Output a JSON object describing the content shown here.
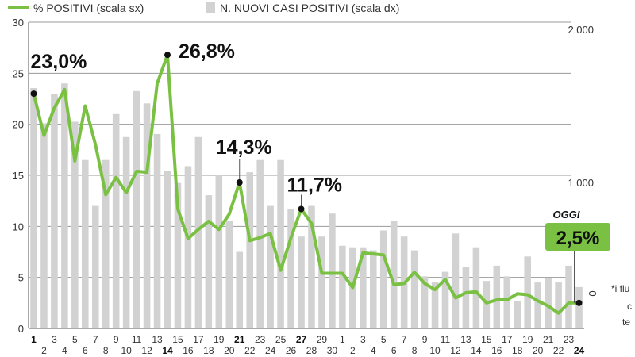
{
  "chart_data": {
    "type": "bar",
    "legend": [
      {
        "name": "% POSITIVI (scala sx)",
        "color": "#7ac143",
        "kind": "line"
      },
      {
        "name": "N. NUOVI CASI POSITIVI (scala dx)",
        "color": "#d2d2d2",
        "kind": "bar"
      }
    ],
    "legend_position": "top-left",
    "grid": true,
    "y_left": {
      "min": 0,
      "max": 30,
      "ticks": [
        "0",
        "5",
        "10",
        "15",
        "20",
        "25",
        "30"
      ]
    },
    "y_right": {
      "min": 0,
      "max": 2000,
      "ticks": [
        {
          "value": 0,
          "label": "0"
        },
        {
          "value": 1000,
          "label": "1.000"
        },
        {
          "value": 2000,
          "label": "2.000"
        }
      ]
    },
    "x_labels": [
      "1",
      "2",
      "3",
      "4",
      "5",
      "6",
      "7",
      "8",
      "9",
      "10",
      "11",
      "12",
      "13",
      "14",
      "15",
      "16",
      "17",
      "18",
      "19",
      "20",
      "21",
      "22",
      "23",
      "24",
      "25",
      "26",
      "27",
      "28",
      "29",
      "30",
      "1",
      "2",
      "3",
      "4",
      "5",
      "6",
      "7",
      "8",
      "9",
      "10",
      "11",
      "12",
      "13",
      "14",
      "15",
      "16",
      "17",
      "18",
      "19",
      "20",
      "21",
      "22",
      "23",
      "24"
    ],
    "bold_labels": [
      0,
      13,
      20,
      26,
      53
    ],
    "series": [
      {
        "name": "N. NUOVI CASI POSITIVI (scala dx)",
        "axis": "right",
        "type": "bar",
        "values": [
          1570,
          1340,
          1530,
          1600,
          1350,
          1100,
          800,
          1100,
          1400,
          1250,
          1550,
          1470,
          1270,
          1030,
          950,
          1060,
          1250,
          870,
          1000,
          700,
          500,
          1020,
          1100,
          800,
          1100,
          780,
          600,
          800,
          600,
          750,
          540,
          530,
          530,
          510,
          640,
          700,
          600,
          510,
          340,
          300,
          370,
          620,
          400,
          530,
          310,
          410,
          340,
          180,
          470,
          300,
          330,
          300,
          410,
          270
        ]
      },
      {
        "name": "% POSITIVI (scala sx)",
        "axis": "left",
        "type": "line",
        "values": [
          23.0,
          18.9,
          21.6,
          23.4,
          16.4,
          21.8,
          18.0,
          13.1,
          14.8,
          13.3,
          15.4,
          15.3,
          24.0,
          26.8,
          11.7,
          8.8,
          9.7,
          10.5,
          9.7,
          11.2,
          14.3,
          8.6,
          8.9,
          9.3,
          5.7,
          8.9,
          11.7,
          10.3,
          5.4,
          5.4,
          5.4,
          4.0,
          7.4,
          7.3,
          7.2,
          4.3,
          4.4,
          5.5,
          4.4,
          3.8,
          4.8,
          3.0,
          3.5,
          3.6,
          2.5,
          2.8,
          2.8,
          3.4,
          3.3,
          2.7,
          2.2,
          1.5,
          2.5,
          2.5
        ]
      }
    ],
    "annotations": [
      {
        "index": 0,
        "value": 23.0,
        "label": "23,0%"
      },
      {
        "index": 13,
        "value": 26.8,
        "label": "26,8%"
      },
      {
        "index": 20,
        "value": 14.3,
        "label": "14,3%"
      },
      {
        "index": 26,
        "value": 11.7,
        "label": "11,7%"
      },
      {
        "index": 53,
        "value": 2.5,
        "label": "2,5%",
        "tag": "OGGI"
      }
    ]
  },
  "side_note": {
    "lines": [
      "*i flu",
      "c",
      "te"
    ]
  }
}
